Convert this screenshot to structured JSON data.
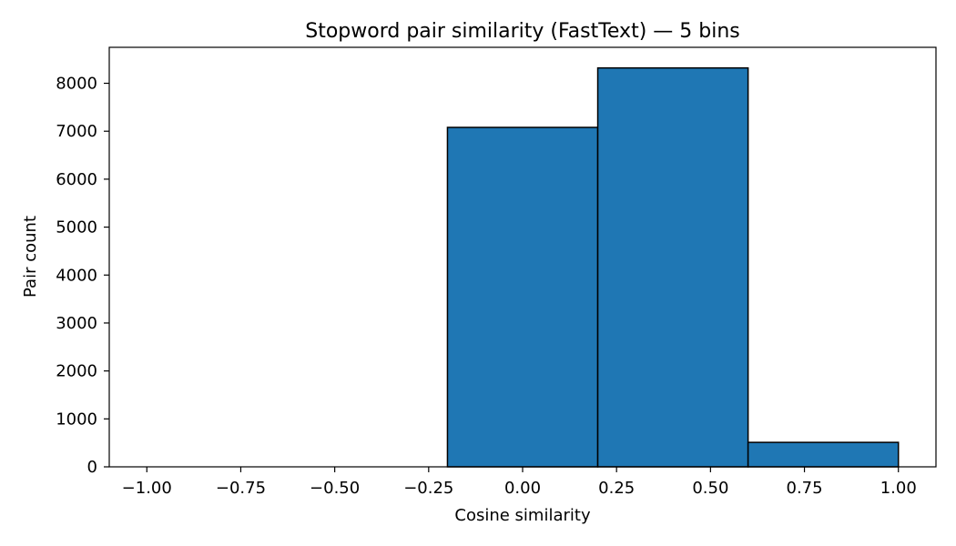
{
  "chart_data": {
    "type": "bar",
    "title": "Stopword pair similarity (FastText) — 5 bins",
    "xlabel": "Cosine similarity",
    "ylabel": "Pair count",
    "xlim": [
      -1.1,
      1.1
    ],
    "ylim": [
      0,
      8750
    ],
    "xticks": [
      -1.0,
      -0.75,
      -0.5,
      -0.25,
      0.0,
      0.25,
      0.5,
      0.75,
      1.0
    ],
    "xtick_labels": [
      "−1.00",
      "−0.75",
      "−0.50",
      "−0.25",
      "0.00",
      "0.25",
      "0.50",
      "0.75",
      "1.00"
    ],
    "yticks": [
      0,
      1000,
      2000,
      3000,
      4000,
      5000,
      6000,
      7000,
      8000
    ],
    "ytick_labels": [
      "0",
      "1000",
      "2000",
      "3000",
      "4000",
      "5000",
      "6000",
      "7000",
      "8000"
    ],
    "bins": [
      {
        "start": -1.0,
        "end": -0.6,
        "count": 0
      },
      {
        "start": -0.6,
        "end": -0.2,
        "count": 0
      },
      {
        "start": -0.2,
        "end": 0.2,
        "count": 7080
      },
      {
        "start": 0.2,
        "end": 0.6,
        "count": 8320
      },
      {
        "start": 0.6,
        "end": 1.0,
        "count": 510
      }
    ],
    "grid": false,
    "legend": "none",
    "colors": {
      "bar_fill": "#1f77b4",
      "bar_edge": "#000000",
      "axis": "#000000"
    }
  }
}
